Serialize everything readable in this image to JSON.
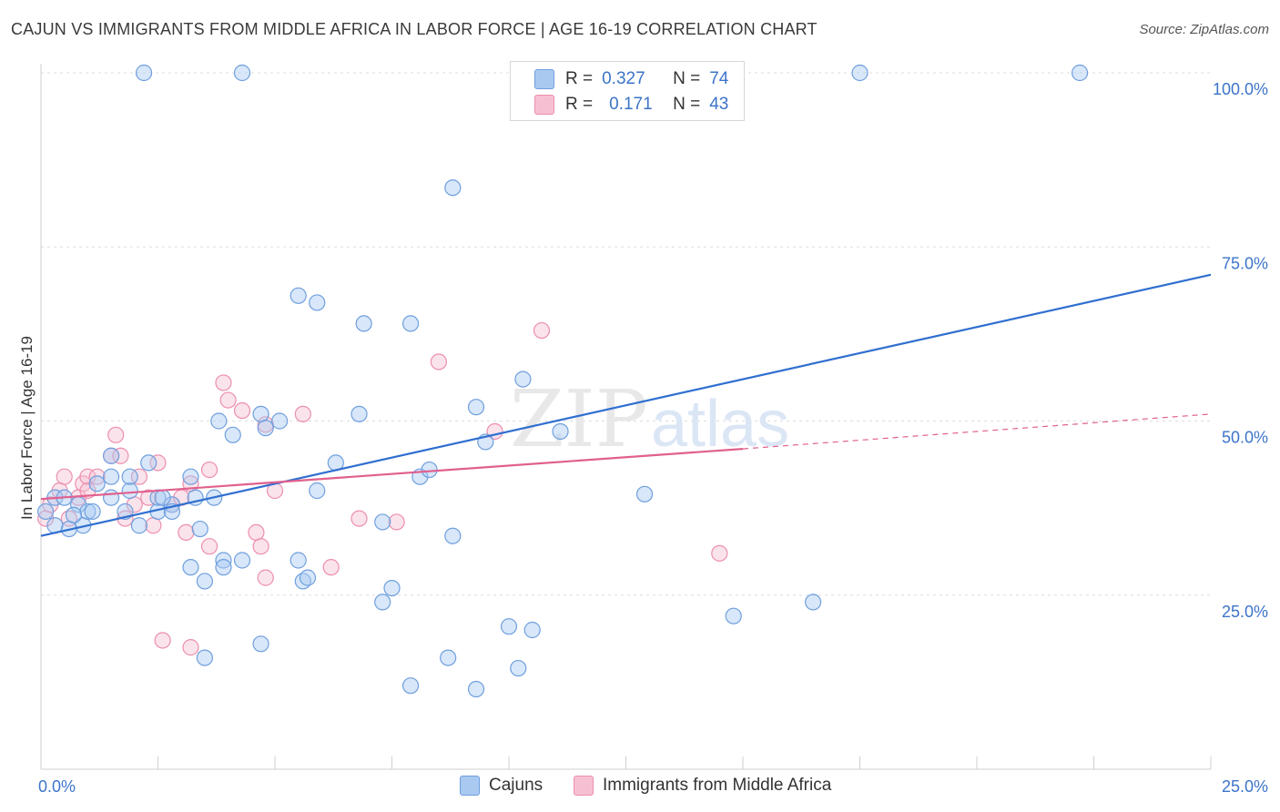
{
  "title": "CAJUN VS IMMIGRANTS FROM MIDDLE AFRICA IN LABOR FORCE | AGE 16-19 CORRELATION CHART",
  "source": "Source: ZipAtlas.com",
  "watermark": {
    "zip": "ZIP",
    "atlas": "atlas"
  },
  "legend": {
    "rows": [
      {
        "r_label": "R =",
        "r_value": "0.327",
        "n_label": "N =",
        "n_value": "74"
      },
      {
        "r_label": "R =",
        "r_value": "0.171",
        "n_label": "N =",
        "n_value": "43"
      }
    ]
  },
  "colors": {
    "cajun_fill": "#a9c9f1",
    "cajun_stroke": "#6f9fde",
    "cajun_line": "#2f6fd0",
    "africa_fill": "#f7c0d2",
    "africa_stroke": "#ec8fae",
    "africa_line": "#e0608e",
    "axis_text": "#3c74c9",
    "grid": "#dddddd"
  },
  "chart_data": {
    "type": "scatter",
    "title": "CAJUN VS IMMIGRANTS FROM MIDDLE AFRICA IN LABOR FORCE | AGE 16-19 CORRELATION CHART",
    "xlabel": "",
    "ylabel": "In Labor Force | Age 16-19",
    "xlim": [
      0,
      25
    ],
    "ylim": [
      0,
      100
    ],
    "x_tick_labels": [
      "0.0%",
      "25.0%"
    ],
    "y_tick_labels": [
      "100.0%",
      "75.0%",
      "50.0%",
      "25.0%"
    ],
    "y_ticks": [
      100,
      75,
      50,
      25
    ],
    "grid": true,
    "legend_position": "top-center",
    "series": [
      {
        "name": "Cajuns",
        "r": 0.327,
        "n": 74,
        "trend": {
          "x": [
            0,
            25
          ],
          "y": [
            33.5,
            71
          ]
        },
        "points": [
          [
            0.1,
            37
          ],
          [
            0.3,
            39
          ],
          [
            0.5,
            39
          ],
          [
            0.8,
            38
          ],
          [
            0.9,
            35
          ],
          [
            1.0,
            37
          ],
          [
            0.6,
            34.5
          ],
          [
            0.7,
            36.5
          ],
          [
            1.2,
            41
          ],
          [
            1.5,
            39
          ],
          [
            1.5,
            42
          ],
          [
            1.9,
            40
          ],
          [
            1.9,
            42
          ],
          [
            1.8,
            37
          ],
          [
            2.1,
            35
          ],
          [
            2.5,
            37
          ],
          [
            2.5,
            39
          ],
          [
            2.8,
            38
          ],
          [
            3.2,
            42
          ],
          [
            3.3,
            39
          ],
          [
            2.3,
            44
          ],
          [
            1.5,
            45
          ],
          [
            2.6,
            39
          ],
          [
            2.8,
            37
          ],
          [
            3.8,
            50
          ],
          [
            3.7,
            39
          ],
          [
            3.2,
            29
          ],
          [
            3.5,
            27
          ],
          [
            3.9,
            30
          ],
          [
            3.9,
            29
          ],
          [
            4.3,
            30
          ],
          [
            4.1,
            48
          ],
          [
            4.7,
            51
          ],
          [
            4.8,
            49
          ],
          [
            5.1,
            50
          ],
          [
            4.7,
            18
          ],
          [
            5.5,
            30
          ],
          [
            5.6,
            27
          ],
          [
            5.7,
            27.5
          ],
          [
            5.5,
            68
          ],
          [
            5.9,
            67
          ],
          [
            5.9,
            40
          ],
          [
            6.3,
            44
          ],
          [
            6.8,
            51
          ],
          [
            6.9,
            64
          ],
          [
            7.3,
            35.5
          ],
          [
            7.5,
            26
          ],
          [
            7.3,
            24
          ],
          [
            7.9,
            64
          ],
          [
            8.1,
            42
          ],
          [
            8.3,
            43
          ],
          [
            8.8,
            33.5
          ],
          [
            8.7,
            16
          ],
          [
            7.9,
            12
          ],
          [
            8.8,
            83.5
          ],
          [
            9.3,
            52
          ],
          [
            9.5,
            47
          ],
          [
            10.0,
            20.5
          ],
          [
            10.3,
            56
          ],
          [
            10.5,
            20
          ],
          [
            10.2,
            14.5
          ],
          [
            11.1,
            48.5
          ],
          [
            9.3,
            11.5
          ],
          [
            12.9,
            39.5
          ],
          [
            14.8,
            22
          ],
          [
            16.5,
            24
          ],
          [
            17.5,
            100
          ],
          [
            22.2,
            100
          ],
          [
            4.3,
            100
          ],
          [
            2.2,
            100
          ],
          [
            3.5,
            16
          ],
          [
            0.3,
            35
          ],
          [
            3.4,
            34.5
          ],
          [
            1.1,
            37
          ]
        ]
      },
      {
        "name": "Immigrants from Middle Africa",
        "r": 0.171,
        "n": 43,
        "trend": {
          "x": [
            0,
            15
          ],
          "y": [
            38.8,
            46
          ]
        },
        "trend_dashed": {
          "x": [
            15,
            25
          ],
          "y": [
            46,
            51
          ]
        },
        "points": [
          [
            0.1,
            36
          ],
          [
            0.4,
            40
          ],
          [
            0.5,
            42
          ],
          [
            0.8,
            39
          ],
          [
            0.9,
            41
          ],
          [
            1.0,
            42
          ],
          [
            1.2,
            42
          ],
          [
            1.5,
            45
          ],
          [
            1.6,
            48
          ],
          [
            1.7,
            45
          ],
          [
            1.8,
            36
          ],
          [
            2.0,
            38
          ],
          [
            2.1,
            42
          ],
          [
            2.3,
            39
          ],
          [
            2.4,
            35
          ],
          [
            2.5,
            44
          ],
          [
            2.8,
            38
          ],
          [
            3.1,
            34
          ],
          [
            3.2,
            41
          ],
          [
            3.6,
            32
          ],
          [
            3.6,
            43
          ],
          [
            3.9,
            55.5
          ],
          [
            4.0,
            53
          ],
          [
            4.3,
            51.5
          ],
          [
            4.6,
            34
          ],
          [
            4.8,
            49.5
          ],
          [
            4.7,
            32
          ],
          [
            4.8,
            27.5
          ],
          [
            5.0,
            40
          ],
          [
            5.6,
            51
          ],
          [
            6.2,
            29
          ],
          [
            6.8,
            36
          ],
          [
            7.6,
            35.5
          ],
          [
            8.5,
            58.5
          ],
          [
            9.7,
            48.5
          ],
          [
            10.7,
            63
          ],
          [
            14.5,
            31
          ],
          [
            2.6,
            18.5
          ],
          [
            3.2,
            17.5
          ],
          [
            0.6,
            36
          ],
          [
            1.0,
            40
          ],
          [
            3.0,
            39
          ],
          [
            0.2,
            38
          ]
        ]
      }
    ]
  }
}
